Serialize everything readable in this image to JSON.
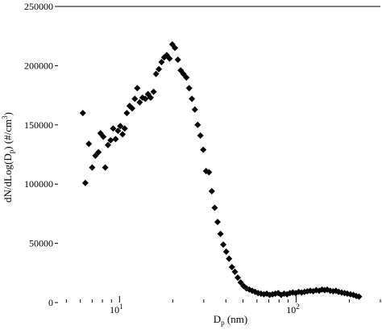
{
  "chart_data": {
    "type": "scatter",
    "title": "",
    "xlabel": {
      "main": "D",
      "sub": "p",
      "rest": " (nm)"
    },
    "ylabel": {
      "p1": "dN/dLog(D",
      "sub": "p",
      "p2": ") (#/cm",
      "sup": "3",
      "p3": ")"
    },
    "x_scale": "log",
    "xlim": [
      4.3,
      300
    ],
    "ylim": [
      0,
      250000
    ],
    "y_ticks": [
      0,
      50000,
      100000,
      150000,
      200000,
      250000
    ],
    "y_tick_labels": [
      "0",
      "50000",
      "100000",
      "150000",
      "200000",
      "250000"
    ],
    "x_major_ticks": [
      10,
      100
    ],
    "x_tick_labels": [
      {
        "base": "10",
        "exp": "1"
      },
      {
        "base": "10",
        "exp": "2"
      }
    ],
    "marker": "diamond",
    "color": "#000000",
    "grid": false,
    "legend": "none",
    "x": [
      6.2,
      6.4,
      6.7,
      7.0,
      7.3,
      7.6,
      7.8,
      8.1,
      8.3,
      8.6,
      8.9,
      9.2,
      9.5,
      9.8,
      10.1,
      10.4,
      10.7,
      11.0,
      11.4,
      11.8,
      12.2,
      12.6,
      13.0,
      13.5,
      14.0,
      14.5,
      15.0,
      15.6,
      16.1,
      16.7,
      17.3,
      17.9,
      18.5,
      19.2,
      19.9,
      20.6,
      21.4,
      22.2,
      23.0,
      23.9,
      24.8,
      25.7,
      26.7,
      27.7,
      28.7,
      29.8,
      30.9,
      32.1,
      33.3,
      34.6,
      35.9,
      37.3,
      38.7,
      40.2,
      41.7,
      43.3,
      45.0,
      46.7,
      48.5,
      50.4,
      52.3,
      54.3,
      56.4,
      58.6,
      60.9,
      63.2,
      65.7,
      68.2,
      70.8,
      73.5,
      76.3,
      79.2,
      82.3,
      85.5,
      88.8,
      92.2,
      95.8,
      99.5,
      103.4,
      107.4,
      111.5,
      115.8,
      120.3,
      125,
      130,
      135,
      140,
      145,
      150,
      156,
      162,
      168,
      174,
      181,
      188,
      195,
      203,
      211,
      219,
      227
    ],
    "y": [
      160000,
      101000,
      134000,
      114000,
      124000,
      127000,
      143000,
      140000,
      114000,
      133000,
      137000,
      147000,
      138000,
      145000,
      149000,
      142000,
      147000,
      160000,
      166000,
      164000,
      172000,
      181000,
      169000,
      173000,
      172000,
      176000,
      173000,
      178000,
      193000,
      197000,
      203000,
      207000,
      209000,
      206000,
      218000,
      215000,
      205000,
      196000,
      193000,
      190000,
      181000,
      172000,
      163000,
      150000,
      141000,
      129000,
      111000,
      110000,
      94000,
      80000,
      68000,
      58000,
      49000,
      43000,
      37000,
      30000,
      26000,
      21000,
      17000,
      14000,
      12000,
      11000,
      10000,
      9000,
      8000,
      7500,
      7000,
      7500,
      6500,
      7000,
      7500,
      8000,
      6500,
      7500,
      7000,
      8000,
      8500,
      8000,
      9000,
      8500,
      9000,
      9500,
      10000,
      9500,
      10500,
      10000,
      11000,
      10500,
      11000,
      10000,
      9500,
      10000,
      9000,
      8500,
      8000,
      7500,
      7000,
      6500,
      5500,
      5000
    ]
  }
}
